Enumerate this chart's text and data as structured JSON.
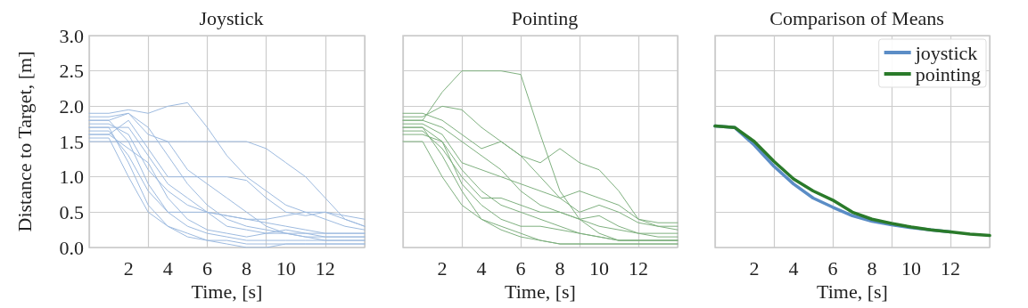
{
  "chart_data": [
    {
      "type": "line",
      "title": "Joystick",
      "xlabel": "Time, [s]",
      "ylabel": "Distance to Target, [m]",
      "x": [
        0,
        1,
        2,
        3,
        4,
        5,
        6,
        7,
        8,
        9,
        10,
        11,
        12,
        13,
        14
      ],
      "xlim": [
        0,
        14
      ],
      "xticks": [
        2,
        4,
        6,
        8,
        10,
        12
      ],
      "ylim": [
        0,
        3
      ],
      "yticks": [
        {
          "value": 0,
          "label": "0.0"
        },
        0.5,
        {
          "value": 1,
          "label": "1.0"
        },
        1.5,
        {
          "value": 2,
          "label": "2.0"
        },
        2.5,
        {
          "value": 3,
          "label": "3.0"
        }
      ],
      "grid": true,
      "series": [
        {
          "color": "#9dbadf",
          "values": [
            1.8,
            1.8,
            1.5,
            0.9,
            0.5,
            0.3,
            0.2,
            0.15,
            0.1,
            0.1,
            0.1,
            0.1,
            0.1,
            0.1,
            0.1
          ]
        },
        {
          "color": "#9dbadf",
          "values": [
            1.7,
            1.7,
            1.2,
            0.6,
            0.3,
            0.15,
            0.1,
            0.1,
            0.05,
            0.05,
            0.05,
            0.05,
            0.05,
            0.05,
            0.05
          ]
        },
        {
          "color": "#9dbadf",
          "values": [
            1.5,
            1.5,
            1.5,
            1.5,
            1.5,
            1.5,
            1.5,
            1.5,
            1.5,
            1.4,
            1.2,
            1.0,
            0.7,
            0.4,
            0.3
          ]
        },
        {
          "color": "#9dbadf",
          "values": [
            1.9,
            1.9,
            1.95,
            1.9,
            2.0,
            2.05,
            1.7,
            1.3,
            1.0,
            0.8,
            0.6,
            0.5,
            0.4,
            0.3,
            0.25
          ]
        },
        {
          "color": "#9dbadf",
          "values": [
            1.6,
            1.6,
            1.8,
            1.4,
            1.0,
            1.0,
            1.0,
            1.0,
            0.95,
            0.7,
            0.5,
            0.45,
            0.5,
            0.4,
            0.3
          ]
        },
        {
          "color": "#9dbadf",
          "values": [
            1.75,
            1.75,
            1.6,
            1.1,
            0.8,
            0.6,
            0.5,
            0.45,
            0.4,
            0.35,
            0.3,
            0.25,
            0.2,
            0.2,
            0.2
          ]
        },
        {
          "color": "#9dbadf",
          "values": [
            1.85,
            1.85,
            1.9,
            1.7,
            1.3,
            0.9,
            0.6,
            0.4,
            0.3,
            0.25,
            0.2,
            0.15,
            0.15,
            0.15,
            0.15
          ]
        },
        {
          "color": "#9dbadf",
          "values": [
            1.65,
            1.65,
            1.3,
            0.8,
            0.5,
            0.5,
            0.5,
            0.45,
            0.4,
            0.4,
            0.45,
            0.5,
            0.5,
            0.45,
            0.4
          ]
        },
        {
          "color": "#9dbadf",
          "values": [
            1.55,
            1.55,
            1.0,
            0.5,
            0.3,
            0.2,
            0.1,
            0.05,
            0.0,
            0.0,
            0.05,
            0.05,
            0.05,
            0.05,
            0.05
          ]
        },
        {
          "color": "#9dbadf",
          "values": [
            1.8,
            1.8,
            1.9,
            1.6,
            1.5,
            1.1,
            0.9,
            0.7,
            0.5,
            0.3,
            0.2,
            0.15,
            0.1,
            0.1,
            0.1
          ]
        },
        {
          "color": "#9dbadf",
          "values": [
            1.7,
            1.7,
            1.7,
            1.3,
            0.9,
            0.7,
            0.5,
            0.3,
            0.25,
            0.2,
            0.2,
            0.2,
            0.2,
            0.2,
            0.2
          ]
        },
        {
          "color": "#9dbadf",
          "values": [
            1.6,
            1.6,
            1.4,
            1.2,
            0.7,
            0.4,
            0.25,
            0.2,
            0.15,
            0.2,
            0.25,
            0.2,
            0.15,
            0.15,
            0.15
          ]
        }
      ]
    },
    {
      "type": "line",
      "title": "Pointing",
      "xlabel": "Time, [s]",
      "x": [
        0,
        1,
        2,
        3,
        4,
        5,
        6,
        7,
        8,
        9,
        10,
        11,
        12,
        13,
        14
      ],
      "xlim": [
        0,
        14
      ],
      "xticks": [
        2,
        4,
        6,
        8,
        10,
        12
      ],
      "ylim": [
        0,
        3
      ],
      "yticks": [
        0,
        0.5,
        1,
        1.5,
        2,
        2.5,
        3
      ],
      "grid": true,
      "tick_labels": "x",
      "series": [
        {
          "color": "#7fb07f",
          "values": [
            1.8,
            1.8,
            2.2,
            2.5,
            2.5,
            2.5,
            2.45,
            1.6,
            0.8,
            0.4,
            0.2,
            0.1,
            0.1,
            0.1,
            0.1
          ]
        },
        {
          "color": "#7fb07f",
          "values": [
            1.7,
            1.7,
            1.3,
            0.8,
            0.4,
            0.25,
            0.15,
            0.1,
            0.05,
            0.05,
            0.05,
            0.05,
            0.05,
            0.05,
            0.05
          ]
        },
        {
          "color": "#7fb07f",
          "values": [
            1.85,
            1.85,
            2.0,
            1.95,
            1.7,
            1.5,
            1.3,
            1.2,
            1.4,
            1.2,
            1.1,
            0.8,
            0.4,
            0.3,
            0.3
          ]
        },
        {
          "color": "#7fb07f",
          "values": [
            1.6,
            1.6,
            1.5,
            1.1,
            0.8,
            0.6,
            0.5,
            0.4,
            0.3,
            0.2,
            0.15,
            0.1,
            0.1,
            0.1,
            0.1
          ]
        },
        {
          "color": "#7fb07f",
          "values": [
            1.75,
            1.75,
            1.6,
            1.2,
            1.1,
            1.0,
            0.9,
            0.8,
            0.7,
            0.8,
            0.7,
            0.6,
            0.4,
            0.35,
            0.35
          ]
        },
        {
          "color": "#7fb07f",
          "values": [
            1.5,
            1.5,
            1.0,
            0.6,
            0.4,
            0.3,
            0.2,
            0.1,
            0.05,
            0.05,
            0.05,
            0.05,
            0.05,
            0.05,
            0.05
          ]
        },
        {
          "color": "#7fb07f",
          "values": [
            1.8,
            1.8,
            1.7,
            1.5,
            1.3,
            1.1,
            0.8,
            0.6,
            0.5,
            0.4,
            0.3,
            0.25,
            0.2,
            0.2,
            0.2
          ]
        },
        {
          "color": "#7fb07f",
          "values": [
            1.65,
            1.65,
            1.4,
            1.0,
            0.7,
            0.7,
            0.6,
            0.5,
            0.5,
            0.4,
            0.45,
            0.3,
            0.2,
            0.15,
            0.15
          ]
        },
        {
          "color": "#7fb07f",
          "values": [
            1.9,
            1.9,
            1.8,
            1.6,
            1.4,
            1.5,
            1.3,
            1.0,
            0.7,
            0.5,
            0.6,
            0.5,
            0.35,
            0.3,
            0.25
          ]
        },
        {
          "color": "#7fb07f",
          "values": [
            1.7,
            1.7,
            1.5,
            0.9,
            0.6,
            0.4,
            0.3,
            0.3,
            0.25,
            0.2,
            0.15,
            0.1,
            0.1,
            0.1,
            0.1
          ]
        }
      ]
    },
    {
      "type": "line",
      "title": "Comparison of Means",
      "xlabel": "Time, [s]",
      "x": [
        0,
        1,
        2,
        3,
        4,
        5,
        6,
        7,
        8,
        9,
        10,
        11,
        12,
        13,
        14
      ],
      "xlim": [
        0,
        14
      ],
      "xticks": [
        2,
        4,
        6,
        8,
        10,
        12
      ],
      "ylim": [
        0,
        3
      ],
      "yticks": [
        0,
        0.5,
        1,
        1.5,
        2,
        2.5,
        3
      ],
      "grid": true,
      "tick_labels": "x",
      "legend": "top right",
      "series": [
        {
          "name": "joystick",
          "color": "#5b8dc6",
          "values": [
            1.72,
            1.7,
            1.45,
            1.15,
            0.9,
            0.7,
            0.57,
            0.45,
            0.37,
            0.32,
            0.28,
            0.25,
            0.22,
            null,
            null
          ]
        },
        {
          "name": "pointing",
          "color": "#2a7a2a",
          "values": [
            1.72,
            1.7,
            1.5,
            1.22,
            0.97,
            0.8,
            0.67,
            0.5,
            0.4,
            0.34,
            0.29,
            0.25,
            0.22,
            0.19,
            0.17
          ]
        }
      ]
    }
  ]
}
